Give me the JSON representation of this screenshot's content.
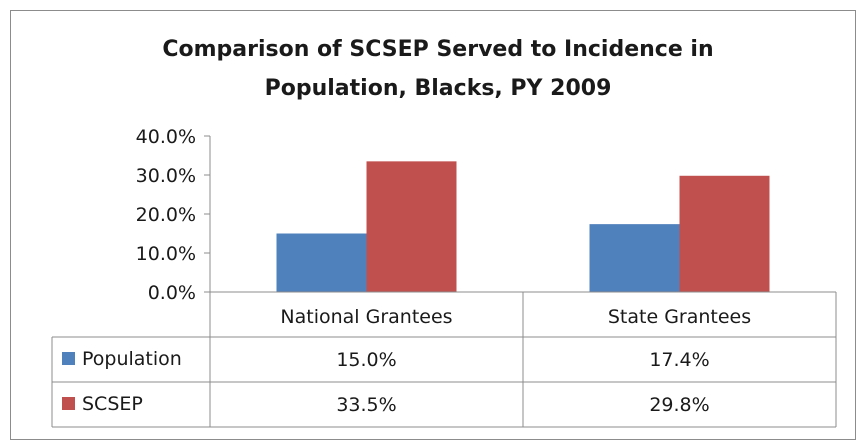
{
  "chart_data": {
    "type": "bar",
    "title_line1": "Comparison of SCSEP Served to Incidence in",
    "title_line2": "Population, Blacks, PY 2009",
    "categories": [
      "National Grantees",
      "State Grantees"
    ],
    "series": [
      {
        "name": "Population",
        "values": [
          15.0,
          17.4
        ],
        "labels": [
          "15.0%",
          "17.4%"
        ],
        "color": "#4f81bd"
      },
      {
        "name": "SCSEP",
        "values": [
          33.5,
          29.8
        ],
        "labels": [
          "33.5%",
          "29.8%"
        ],
        "color": "#c0504d"
      }
    ],
    "yticks": [
      "0.0%",
      "10.0%",
      "20.0%",
      "30.0%",
      "40.0%"
    ],
    "ylim": [
      0,
      40
    ],
    "ytick_values": [
      0,
      10,
      20,
      30,
      40
    ],
    "grid": false,
    "data_table": true
  }
}
